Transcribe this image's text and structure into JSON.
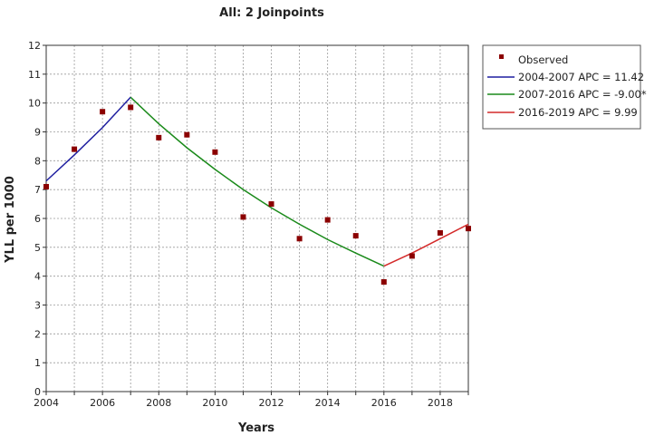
{
  "chart_data": {
    "type": "line",
    "title": "All: 2 Joinpoints",
    "xlabel": "Years",
    "ylabel": "YLL per 1000",
    "xlim": [
      2004,
      2019
    ],
    "ylim": [
      0,
      12
    ],
    "x_ticks": [
      "2004",
      "2006",
      "2008",
      "2010",
      "2012",
      "2014",
      "2016",
      "2018"
    ],
    "y_ticks": [
      "0",
      "1",
      "2",
      "3",
      "4",
      "5",
      "6",
      "7",
      "8",
      "9",
      "10",
      "11",
      "12"
    ],
    "grid": true,
    "legend_position": "top-right",
    "observed": {
      "name": "Observed",
      "color": "#8b0000",
      "x": [
        2004,
        2005,
        2006,
        2007,
        2008,
        2009,
        2010,
        2011,
        2012,
        2013,
        2014,
        2015,
        2016,
        2017,
        2018,
        2019
      ],
      "y": [
        7.1,
        8.4,
        9.7,
        9.85,
        8.8,
        8.9,
        8.3,
        6.05,
        6.5,
        5.3,
        5.95,
        5.4,
        3.8,
        4.7,
        5.5,
        5.65
      ]
    },
    "series": [
      {
        "name": "2004-2007 APC  = 11.42",
        "color": "#1f1fa0",
        "x": [
          2004,
          2005,
          2006,
          2007
        ],
        "y": [
          7.3,
          8.2,
          9.15,
          10.2
        ]
      },
      {
        "name": "2007-2016 APC  = -9.00*",
        "color": "#1a8a1a",
        "x": [
          2007,
          2008,
          2009,
          2010,
          2011,
          2012,
          2013,
          2014,
          2015,
          2016
        ],
        "y": [
          10.2,
          9.28,
          8.45,
          7.7,
          7.0,
          6.37,
          5.8,
          5.27,
          4.8,
          4.35
        ]
      },
      {
        "name": "2016-2019 APC  =  9.99",
        "color": "#d42a2a",
        "x": [
          2016,
          2017,
          2018,
          2019
        ],
        "y": [
          4.35,
          4.8,
          5.3,
          5.8
        ]
      }
    ]
  }
}
